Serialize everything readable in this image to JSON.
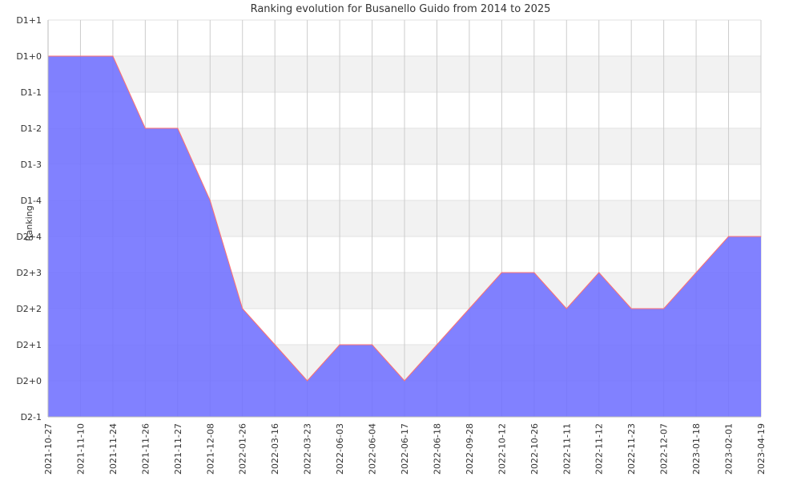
{
  "chart_data": {
    "type": "area",
    "title": "Ranking evolution for Busanello Guido from 2014 to 2025",
    "ylabel": "Ranking",
    "xlabel": "",
    "y_categories": [
      "D2-1",
      "D2+0",
      "D2+1",
      "D2+2",
      "D2+3",
      "D2+4",
      "D1-4",
      "D1-3",
      "D1-2",
      "D1-1",
      "D1+0",
      "D1+1"
    ],
    "x": [
      "2021-10-27",
      "2021-11-10",
      "2021-11-24",
      "2021-11-26",
      "2021-11-27",
      "2021-12-08",
      "2022-01-26",
      "2022-03-16",
      "2022-03-23",
      "2022-06-03",
      "2022-06-04",
      "2022-06-17",
      "2022-06-18",
      "2022-09-28",
      "2022-10-12",
      "2022-10-26",
      "2022-11-11",
      "2022-11-12",
      "2022-11-23",
      "2022-12-07",
      "2023-01-18",
      "2023-02-01",
      "2023-04-19"
    ],
    "series": [
      {
        "values": [
          "D1+0",
          "D1+0",
          "D1+0",
          "D1-2",
          "D1-2",
          "D1-4",
          "D2+2",
          "D2+1",
          "D2+0",
          "D2+1",
          "D2+1",
          "D2+0",
          "D2+1",
          "D2+2",
          "D2+3",
          "D2+3",
          "D2+2",
          "D2+3",
          "D2+2",
          "D2+2",
          "D2+3",
          "D2+4",
          "D2+4"
        ]
      }
    ],
    "grid": true,
    "colors": {
      "fill": "#6f6fff",
      "line": "#ff6f6f",
      "band": "#f2f2f2",
      "grid": "#cccccc"
    }
  }
}
